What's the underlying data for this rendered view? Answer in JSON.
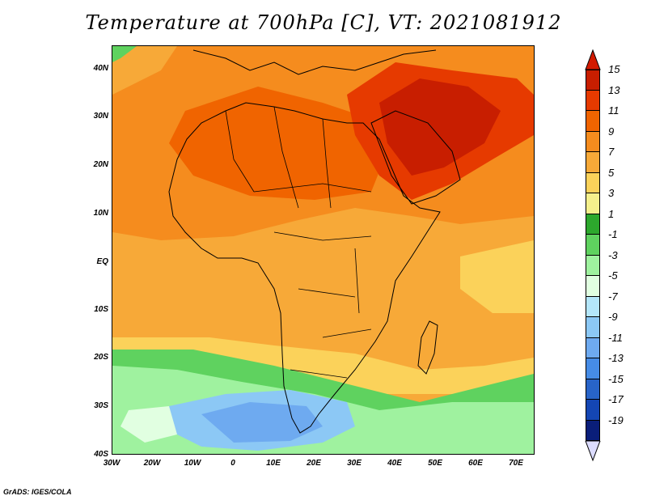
{
  "title": "Temperature at 700hPa [C], VT: 2021081912",
  "credit": "GrADS: IGES/COLA",
  "map": {
    "lon_range": [
      -30,
      75
    ],
    "lat_range": [
      -40,
      45
    ],
    "lat_labels": [
      "40N",
      "30N",
      "20N",
      "10N",
      "EQ",
      "10S",
      "20S",
      "30S",
      "40S"
    ],
    "lon_labels": [
      "30W",
      "20W",
      "10W",
      "0",
      "10E",
      "20E",
      "30E",
      "40E",
      "50E",
      "60E",
      "70E"
    ]
  },
  "colorbar": {
    "labels": [
      "15",
      "13",
      "11",
      "9",
      "7",
      "5",
      "3",
      "1",
      "-1",
      "-3",
      "-5",
      "-7",
      "-9",
      "-11",
      "-13",
      "-15",
      "-17",
      "-19"
    ],
    "colors": [
      "#c81e00",
      "#e63a00",
      "#f06400",
      "#f58c1e",
      "#f7a938",
      "#fbd25a",
      "#f5f08c",
      "#2da82d",
      "#5fd25f",
      "#9ff29f",
      "#e1ffe1",
      "#b4e6fa",
      "#8cc8f5",
      "#6eaaf0",
      "#468ce6",
      "#2864c8",
      "#1446b4",
      "#0a1e7a"
    ],
    "top_arrow_color": "#d21a00",
    "bottom_arrow_color": "#dcdcff"
  }
}
